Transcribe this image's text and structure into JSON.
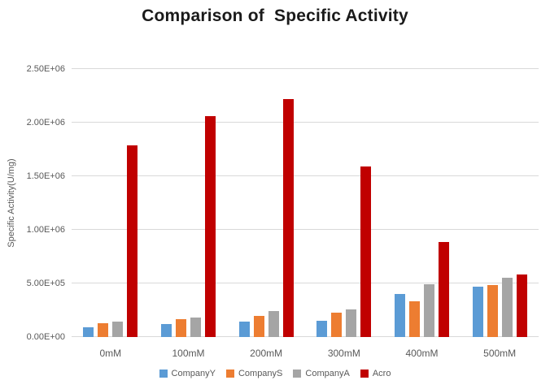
{
  "chart_data": {
    "type": "bar",
    "title": "Comparison of  Specific Activity",
    "xlabel": "",
    "ylabel": "Specific Activity(U/mg)",
    "categories": [
      "0mM",
      "100mM",
      "200mM",
      "300mM",
      "400mM",
      "500mM"
    ],
    "series": [
      {
        "name": "CompanyY",
        "color": "#5B9BD5",
        "values": [
          90000,
          120000,
          145000,
          150000,
          400000,
          470000
        ]
      },
      {
        "name": "CompanyS",
        "color": "#ED7D31",
        "values": [
          130000,
          170000,
          195000,
          230000,
          335000,
          485000
        ]
      },
      {
        "name": "CompanyA",
        "color": "#A5A5A5",
        "values": [
          145000,
          180000,
          245000,
          260000,
          490000,
          550000
        ]
      },
      {
        "name": "Acro",
        "color": "#C00000",
        "values": [
          1790000,
          2060000,
          2220000,
          1590000,
          890000,
          580000
        ]
      }
    ],
    "ylim": [
      0,
      2500000
    ],
    "ytick_interval": 500000,
    "ytick_labels": [
      "0.00E+00",
      "5.00E+05",
      "1.00E+06",
      "1.50E+06",
      "2.00E+06",
      "2.50E+06"
    ],
    "grid": "horizontal",
    "legend_position": "bottom"
  },
  "colors": {
    "background": "#FFFFFF",
    "gridline": "#D9D9D9",
    "axis_text": "#595959",
    "title_text": "#1A1A1A"
  }
}
